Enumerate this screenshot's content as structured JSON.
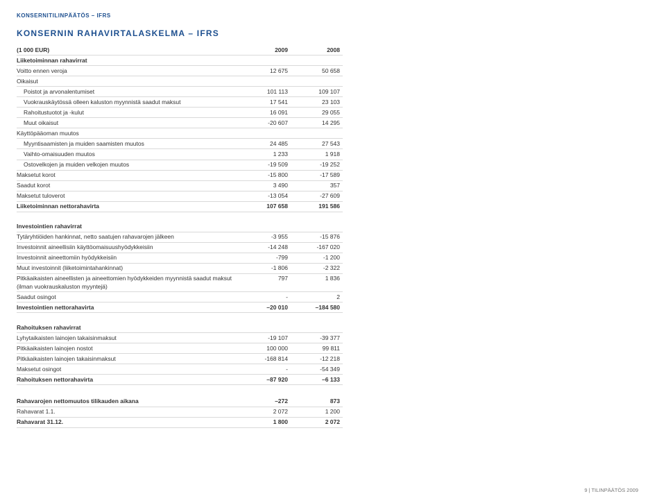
{
  "colors": {
    "brand": "#1d4f8f",
    "text": "#333333",
    "rule": "#d9d9d9",
    "footer": "#777777"
  },
  "header_label": "KONSERNITILINPÄÄTÖS – IFRS",
  "title": "KONSERNIN RAHAVIRTALASKELMA  – IFRS",
  "col_meta": "(1 000 EUR)",
  "col_2009": "2009",
  "col_2008": "2008",
  "rows": [
    {
      "label": "Liiketoiminnan rahavirrat",
      "v1": "",
      "v2": "",
      "bold": true,
      "indent": 0
    },
    {
      "label": "Voitto ennen veroja",
      "v1": "12 675",
      "v2": "50 658",
      "indent": 0
    },
    {
      "label": "Oikaisut",
      "v1": "",
      "v2": "",
      "indent": 0
    },
    {
      "label": "Poistot ja arvonalentumiset",
      "v1": "101 113",
      "v2": "109 107",
      "indent": 1
    },
    {
      "label": "Vuokrauskäytössä olleen kaluston myynnistä saadut maksut",
      "v1": "17 541",
      "v2": "23 103",
      "indent": 1
    },
    {
      "label": "Rahoitustuotot ja -kulut",
      "v1": "16 091",
      "v2": "29 055",
      "indent": 1
    },
    {
      "label": "Muut oikaisut",
      "v1": "-20 607",
      "v2": "14 295",
      "indent": 1
    },
    {
      "label": "Käyttöpääoman muutos",
      "v1": "",
      "v2": "",
      "indent": 0
    },
    {
      "label": "Myyntisaamisten ja muiden saamisten muutos",
      "v1": "24 485",
      "v2": "27 543",
      "indent": 1
    },
    {
      "label": "Vaihto-omaisuuden muutos",
      "v1": "1 233",
      "v2": "1 918",
      "indent": 1
    },
    {
      "label": "Ostovelkojen ja muiden velkojen muutos",
      "v1": "-19 509",
      "v2": "-19 252",
      "indent": 1
    },
    {
      "label": "Maksetut korot",
      "v1": "-15 800",
      "v2": "-17 589",
      "indent": 0
    },
    {
      "label": "Saadut korot",
      "v1": "3 490",
      "v2": "357",
      "indent": 0
    },
    {
      "label": "Maksetut tuloverot",
      "v1": "-13 054",
      "v2": "-27 609",
      "indent": 0
    },
    {
      "label": "Liiketoiminnan nettorahavirta",
      "v1": "107 658",
      "v2": "191 586",
      "bold": true,
      "indent": 0
    }
  ],
  "sec2_title": "Investointien rahavirrat",
  "rows2": [
    {
      "label": "Tytäryhtiöiden hankinnat, netto saatujen rahavarojen jälkeen",
      "v1": "-3 955",
      "v2": "-15 876",
      "indent": 0
    },
    {
      "label": "Investoinnit aineellisiin käyttöomaisuushyödykkeisiin",
      "v1": "-14 248",
      "v2": "-167 020",
      "indent": 0
    },
    {
      "label": "Investoinnit aineettomiin hyödykkeisiin",
      "v1": "-799",
      "v2": "-1 200",
      "indent": 0
    },
    {
      "label": "Muut investoinnit (liiketoimintahankinnat)",
      "v1": "-1 806",
      "v2": "-2 322",
      "indent": 0
    },
    {
      "label": "Pitkäaikaisten aineellisten ja aineettomien hyödykkeiden myynnistä saadut maksut (ilman vuokrauskaluston myyntejä)",
      "v1": "797",
      "v2": "1 836",
      "indent": 0
    },
    {
      "label": "Saadut osingot",
      "v1": "-",
      "v2": "2",
      "indent": 0
    },
    {
      "label": "Investointien nettorahavirta",
      "v1": "–20 010",
      "v2": "–184 580",
      "bold": true,
      "indent": 0
    }
  ],
  "sec3_title": "Rahoituksen rahavirrat",
  "rows3": [
    {
      "label": "Lyhytaikaisten lainojen takaisinmaksut",
      "v1": "-19 107",
      "v2": "-39 377",
      "indent": 0
    },
    {
      "label": "Pitkäaikaisten lainojen nostot",
      "v1": "100 000",
      "v2": "99 811",
      "indent": 0
    },
    {
      "label": "Pitkäaikaisten lainojen takaisinmaksut",
      "v1": "-168 814",
      "v2": "-12 218",
      "indent": 0
    },
    {
      "label": "Maksetut osingot",
      "v1": "-",
      "v2": "-54 349",
      "indent": 0
    },
    {
      "label": "Rahoituksen nettorahavirta",
      "v1": "–87 920",
      "v2": "–6 133",
      "bold": true,
      "indent": 0
    }
  ],
  "rows4": [
    {
      "label": "Rahavarojen nettomuutos tilikauden aikana",
      "v1": "–272",
      "v2": "873",
      "bold": true,
      "indent": 0
    },
    {
      "label": "Rahavarat 1.1.",
      "v1": "2 072",
      "v2": "1 200",
      "indent": 0
    },
    {
      "label": "Rahavarat 31.12.",
      "v1": "1 800",
      "v2": "2 072",
      "bold": true,
      "indent": 0
    }
  ],
  "footer": "9  |  TILINPÄÄTÖS 2009"
}
